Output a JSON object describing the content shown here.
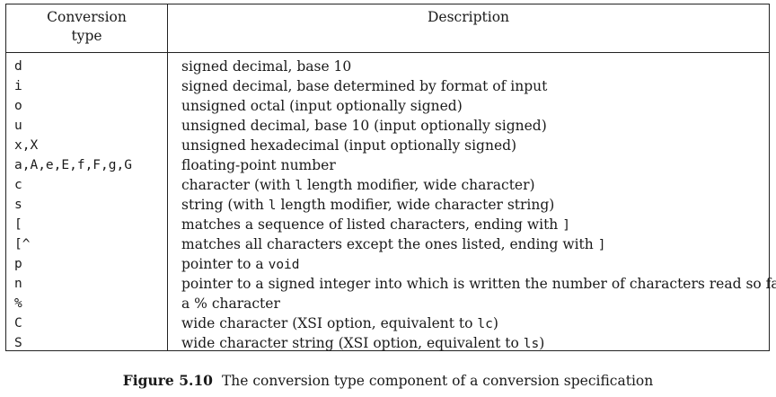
{
  "table": {
    "header": {
      "col1_line1": "Conversion",
      "col1_line2": "type",
      "col2": "Description"
    },
    "rows": [
      {
        "type": "d",
        "desc": [
          "signed decimal, base 10"
        ]
      },
      {
        "type": "i",
        "desc": [
          "signed decimal, base determined by format of input"
        ]
      },
      {
        "type": "o",
        "desc": [
          "unsigned octal (input optionally signed)"
        ]
      },
      {
        "type": "u",
        "desc": [
          "unsigned decimal, base 10 (input optionally signed)"
        ]
      },
      {
        "type": "x,X",
        "desc": [
          "unsigned hexadecimal (input optionally signed)"
        ]
      },
      {
        "type": "a,A,e,E,f,F,g,G",
        "desc": [
          "floating-point number"
        ]
      },
      {
        "type": "c",
        "desc": [
          "character (with ",
          "l",
          " length modifier, wide character)"
        ]
      },
      {
        "type": "s",
        "desc": [
          "string (with ",
          "l",
          " length modifier, wide character string)"
        ]
      },
      {
        "type": "[",
        "desc": [
          "matches a sequence of listed characters, ending with ",
          "]",
          ""
        ]
      },
      {
        "type": "[^",
        "desc": [
          "matches all characters except the ones listed, ending with ",
          "]",
          ""
        ]
      },
      {
        "type": "p",
        "desc": [
          "pointer to a ",
          "void",
          ""
        ]
      },
      {
        "type": "n",
        "desc": [
          "pointer to a signed integer into which is written the number of characters read so far"
        ]
      },
      {
        "type": "%",
        "desc": [
          "a % character"
        ]
      },
      {
        "type": "C",
        "desc": [
          "wide character (XSI option, equivalent to ",
          "lc",
          ")"
        ]
      },
      {
        "type": "S",
        "desc": [
          "wide character string (XSI option, equivalent to ",
          "ls",
          ")"
        ]
      }
    ]
  },
  "caption": {
    "label": "Figure 5.10",
    "text": "The conversion type component of a conversion specification"
  }
}
